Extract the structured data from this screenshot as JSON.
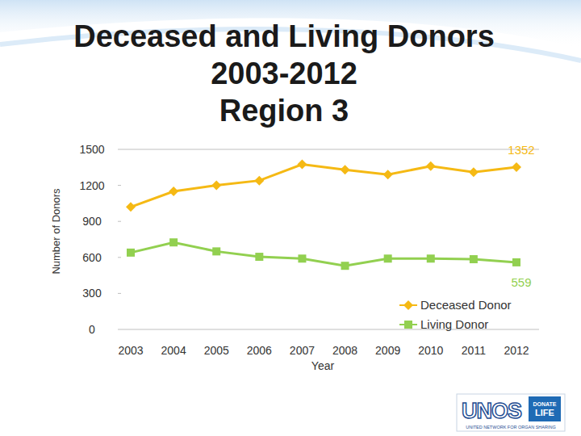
{
  "chart_data": {
    "type": "line",
    "title": [
      "Deceased and Living Donors",
      "2003-2012",
      "Region 3"
    ],
    "x_label": "Year",
    "y_label": "Number of Donors",
    "categories": [
      "2003",
      "2004",
      "2005",
      "2006",
      "2007",
      "2008",
      "2009",
      "2010",
      "2011",
      "2012"
    ],
    "series": [
      {
        "name": "Deceased Donor",
        "color": "#f5b914",
        "marker": "diamond",
        "values": [
          1020,
          1150,
          1200,
          1240,
          1375,
          1330,
          1290,
          1360,
          1310,
          1352
        ],
        "value_labels": [
          null,
          null,
          null,
          null,
          null,
          null,
          null,
          null,
          null,
          "1352"
        ]
      },
      {
        "name": "Living Donor",
        "color": "#92d050",
        "marker": "square",
        "values": [
          640,
          725,
          650,
          605,
          590,
          530,
          590,
          590,
          585,
          559
        ],
        "value_labels": [
          null,
          null,
          null,
          null,
          null,
          null,
          null,
          null,
          null,
          "559"
        ]
      }
    ],
    "ylim": [
      0,
      1500
    ],
    "yticks": [
      0,
      300,
      600,
      900,
      1200,
      1500
    ],
    "grid": false,
    "legend": "bottom-right"
  },
  "logo": {
    "text": "UNOS",
    "badge": [
      "DONATE",
      "LIFE"
    ],
    "caption": "UNITED NETWORK FOR ORGAN SHARING"
  }
}
